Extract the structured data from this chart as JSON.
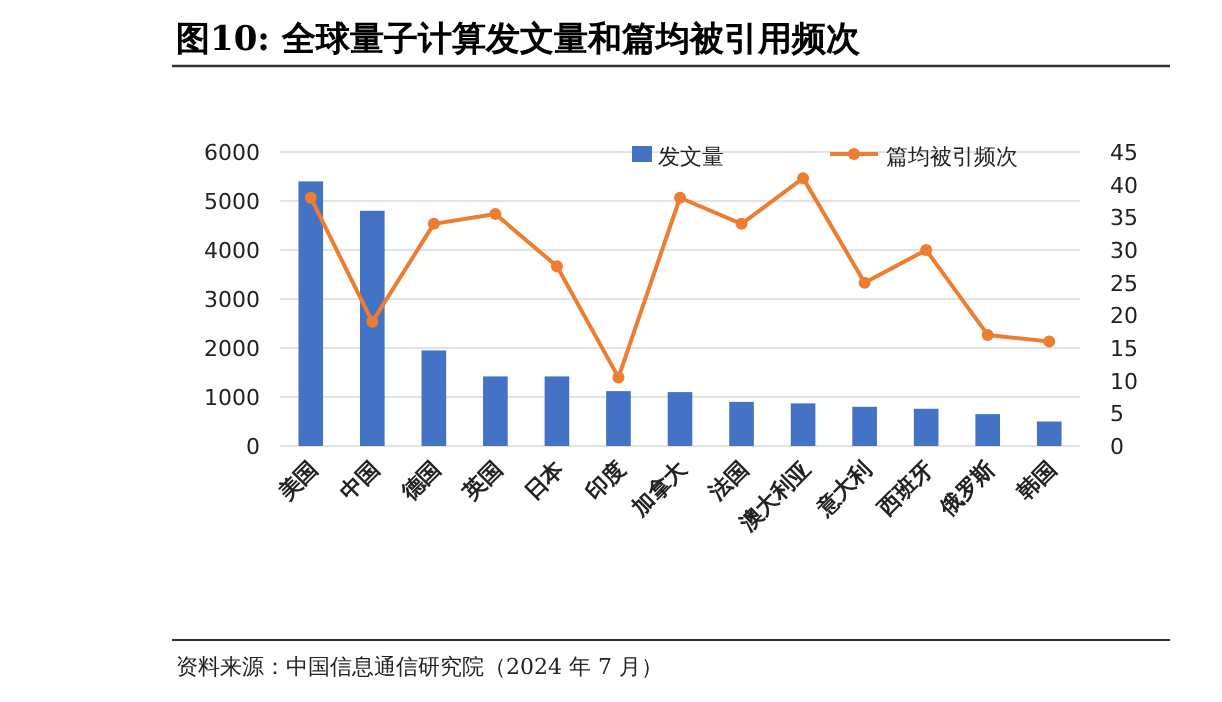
{
  "chart_data": {
    "type": "bar",
    "title": "图10:  全球量子计算发文量和篇均被引用频次",
    "categories": [
      "美国",
      "中国",
      "德国",
      "英国",
      "日本",
      "印度",
      "加拿大",
      "法国",
      "澳大利亚",
      "意大利",
      "西班牙",
      "俄罗斯",
      "韩国"
    ],
    "series": [
      {
        "name": "发文量",
        "color": "#4472c4",
        "values": [
          5400,
          4800,
          1950,
          1420,
          1420,
          1120,
          1100,
          900,
          870,
          800,
          760,
          650,
          500
        ]
      },
      {
        "name": "篇均被引频次",
        "type": "line",
        "axis": "y2",
        "color": "#ed7d31",
        "marker": "circle",
        "values": [
          38,
          19,
          34,
          35.5,
          27.5,
          10.5,
          38,
          34,
          41,
          25,
          30,
          17,
          16
        ]
      }
    ],
    "ylim": [
      0,
      6000
    ],
    "yticks": [
      0,
      1000,
      2000,
      3000,
      4000,
      5000,
      6000
    ],
    "y2lim": [
      0,
      45
    ],
    "y2ticks": [
      0,
      5,
      10,
      15,
      20,
      25,
      30,
      35,
      40,
      45
    ],
    "grid": "y",
    "legend": "top right",
    "annotations": [
      "资料来源：中国信息通信研究院（2024 年 7 月）"
    ]
  }
}
